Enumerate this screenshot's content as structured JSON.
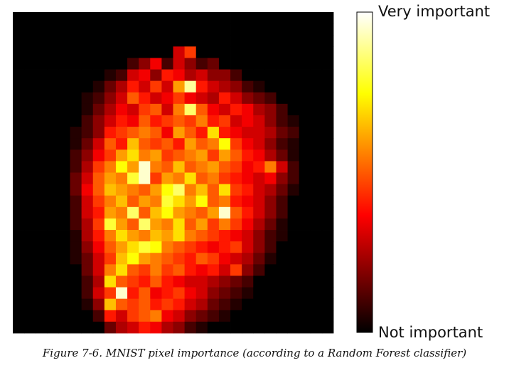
{
  "caption": "Figure 7-6. MNIST pixel importance (according to a Random Forest classifier)",
  "chart_data": {
    "type": "heatmap",
    "grid": [
      28,
      28
    ],
    "colormap": "hot",
    "value_range": [
      0,
      1
    ],
    "colorbar": {
      "high_label": "Very important",
      "low_label": "Not important"
    },
    "values": [
      [
        0,
        0,
        0,
        0,
        0,
        0,
        0,
        0,
        0,
        0,
        0,
        0,
        0,
        0,
        0,
        0,
        0,
        0,
        0,
        0,
        0,
        0,
        0,
        0,
        0,
        0,
        0,
        0
      ],
      [
        0,
        0,
        0,
        0,
        0,
        0,
        0,
        0,
        0,
        0,
        0,
        0,
        0,
        0,
        0,
        0,
        0,
        0,
        0,
        0,
        0,
        0,
        0,
        0,
        0,
        0,
        0,
        0
      ],
      [
        0,
        0,
        0,
        0,
        0,
        0,
        0,
        0,
        0,
        0,
        0,
        0,
        0,
        0,
        0,
        0,
        0,
        0,
        0,
        0,
        0,
        0,
        0,
        0,
        0,
        0,
        0,
        0
      ],
      [
        0,
        0,
        0,
        0,
        0,
        0,
        0,
        0,
        0,
        0,
        0,
        0,
        0,
        0,
        0.3,
        0.45,
        0,
        0,
        0,
        0,
        0,
        0,
        0,
        0,
        0,
        0,
        0,
        0
      ],
      [
        0,
        0,
        0,
        0,
        0,
        0,
        0,
        0,
        0,
        0,
        0.1,
        0.2,
        0.35,
        0.1,
        0.3,
        0.2,
        0.1,
        0.15,
        0,
        0,
        0,
        0,
        0,
        0,
        0,
        0,
        0,
        0
      ],
      [
        0,
        0,
        0,
        0,
        0,
        0,
        0,
        0,
        0.05,
        0.1,
        0.3,
        0.35,
        0.2,
        0.4,
        0.35,
        0.25,
        0.3,
        0.2,
        0.2,
        0.1,
        0,
        0,
        0,
        0,
        0,
        0,
        0,
        0
      ],
      [
        0,
        0,
        0,
        0,
        0,
        0,
        0,
        0.05,
        0.15,
        0.25,
        0.4,
        0.3,
        0.45,
        0.3,
        0.6,
        0.9,
        0.4,
        0.3,
        0.25,
        0.2,
        0.1,
        0.05,
        0,
        0,
        0,
        0,
        0,
        0
      ],
      [
        0,
        0,
        0,
        0,
        0,
        0,
        0.05,
        0.1,
        0.2,
        0.3,
        0.5,
        0.4,
        0.3,
        0.35,
        0.45,
        0.35,
        0.3,
        0.25,
        0.4,
        0.3,
        0.2,
        0.15,
        0.1,
        0,
        0,
        0,
        0,
        0
      ],
      [
        0,
        0,
        0,
        0,
        0,
        0,
        0.05,
        0.15,
        0.25,
        0.35,
        0.3,
        0.45,
        0.5,
        0.3,
        0.55,
        0.85,
        0.5,
        0.35,
        0.3,
        0.4,
        0.35,
        0.25,
        0.2,
        0.1,
        0,
        0,
        0,
        0
      ],
      [
        0,
        0,
        0,
        0,
        0,
        0,
        0.1,
        0.2,
        0.3,
        0.4,
        0.35,
        0.5,
        0.4,
        0.45,
        0.5,
        0.45,
        0.55,
        0.4,
        0.45,
        0.3,
        0.35,
        0.3,
        0.2,
        0.1,
        0.05,
        0,
        0,
        0
      ],
      [
        0,
        0,
        0,
        0,
        0,
        0.05,
        0.1,
        0.2,
        0.4,
        0.45,
        0.5,
        0.55,
        0.5,
        0.35,
        0.6,
        0.5,
        0.4,
        0.7,
        0.4,
        0.35,
        0.3,
        0.3,
        0.25,
        0.15,
        0.1,
        0,
        0,
        0
      ],
      [
        0,
        0,
        0,
        0,
        0,
        0.05,
        0.15,
        0.3,
        0.5,
        0.4,
        0.65,
        0.5,
        0.45,
        0.5,
        0.4,
        0.6,
        0.5,
        0.55,
        0.75,
        0.45,
        0.35,
        0.3,
        0.2,
        0.1,
        0.05,
        0,
        0,
        0
      ],
      [
        0,
        0,
        0,
        0,
        0,
        0.1,
        0.2,
        0.35,
        0.45,
        0.6,
        0.7,
        0.55,
        0.6,
        0.45,
        0.5,
        0.55,
        0.6,
        0.45,
        0.6,
        0.5,
        0.4,
        0.35,
        0.25,
        0.15,
        0.05,
        0,
        0,
        0
      ],
      [
        0,
        0,
        0,
        0,
        0,
        0.1,
        0.25,
        0.45,
        0.55,
        0.75,
        0.6,
        0.95,
        0.55,
        0.5,
        0.65,
        0.5,
        0.55,
        0.6,
        0.5,
        0.45,
        0.35,
        0.4,
        0.55,
        0.3,
        0.1,
        0,
        0,
        0
      ],
      [
        0,
        0,
        0,
        0,
        0,
        0.15,
        0.3,
        0.5,
        0.6,
        0.55,
        0.8,
        0.95,
        0.45,
        0.6,
        0.55,
        0.7,
        0.5,
        0.55,
        0.45,
        0.4,
        0.35,
        0.3,
        0.35,
        0.2,
        0.1,
        0,
        0,
        0
      ],
      [
        0,
        0,
        0,
        0,
        0,
        0.15,
        0.35,
        0.5,
        0.65,
        0.6,
        0.55,
        0.5,
        0.6,
        0.75,
        0.85,
        0.55,
        0.65,
        0.5,
        0.7,
        0.45,
        0.4,
        0.3,
        0.25,
        0.15,
        0.05,
        0,
        0,
        0
      ],
      [
        0,
        0,
        0,
        0,
        0,
        0.1,
        0.3,
        0.45,
        0.55,
        0.65,
        0.5,
        0.6,
        0.55,
        0.8,
        0.7,
        0.6,
        0.75,
        0.5,
        0.55,
        0.4,
        0.35,
        0.3,
        0.2,
        0.1,
        0,
        0,
        0,
        0
      ],
      [
        0,
        0,
        0,
        0,
        0,
        0.1,
        0.3,
        0.4,
        0.6,
        0.55,
        0.85,
        0.5,
        0.65,
        0.75,
        0.6,
        0.55,
        0.5,
        0.6,
        0.95,
        0.5,
        0.4,
        0.3,
        0.2,
        0.1,
        0,
        0,
        0,
        0
      ],
      [
        0,
        0,
        0,
        0,
        0,
        0.1,
        0.25,
        0.45,
        0.8,
        0.6,
        0.5,
        0.85,
        0.6,
        0.55,
        0.7,
        0.5,
        0.6,
        0.45,
        0.55,
        0.45,
        0.35,
        0.25,
        0.15,
        0.05,
        0,
        0,
        0,
        0
      ],
      [
        0,
        0,
        0,
        0,
        0,
        0.05,
        0.25,
        0.4,
        0.55,
        0.7,
        0.6,
        0.55,
        0.65,
        0.6,
        0.7,
        0.55,
        0.5,
        0.45,
        0.4,
        0.35,
        0.3,
        0.2,
        0.1,
        0.05,
        0,
        0,
        0,
        0
      ],
      [
        0,
        0,
        0,
        0,
        0,
        0.05,
        0.2,
        0.35,
        0.5,
        0.6,
        0.7,
        0.8,
        0.75,
        0.55,
        0.5,
        0.45,
        0.4,
        0.35,
        0.4,
        0.45,
        0.3,
        0.2,
        0.1,
        0,
        0,
        0,
        0,
        0
      ],
      [
        0,
        0,
        0,
        0,
        0,
        0.05,
        0.15,
        0.3,
        0.45,
        0.65,
        0.75,
        0.6,
        0.55,
        0.5,
        0.45,
        0.4,
        0.5,
        0.45,
        0.35,
        0.3,
        0.25,
        0.15,
        0.05,
        0,
        0,
        0,
        0,
        0
      ],
      [
        0,
        0,
        0,
        0,
        0,
        0,
        0.15,
        0.3,
        0.55,
        0.7,
        0.5,
        0.45,
        0.55,
        0.45,
        0.5,
        0.4,
        0.35,
        0.4,
        0.3,
        0.45,
        0.2,
        0.1,
        0,
        0,
        0,
        0,
        0,
        0
      ],
      [
        0,
        0,
        0,
        0,
        0,
        0,
        0.1,
        0.25,
        0.7,
        0.5,
        0.45,
        0.4,
        0.5,
        0.4,
        0.35,
        0.3,
        0.3,
        0.25,
        0.2,
        0.15,
        0.1,
        0,
        0,
        0,
        0,
        0,
        0,
        0
      ],
      [
        0,
        0,
        0,
        0,
        0,
        0,
        0.1,
        0.3,
        0.45,
        0.95,
        0.4,
        0.5,
        0.35,
        0.4,
        0.45,
        0.35,
        0.3,
        0.2,
        0.15,
        0.1,
        0.05,
        0,
        0,
        0,
        0,
        0,
        0,
        0
      ],
      [
        0,
        0,
        0,
        0,
        0,
        0,
        0.05,
        0.2,
        0.65,
        0.5,
        0.45,
        0.5,
        0.4,
        0.45,
        0.4,
        0.3,
        0.25,
        0.15,
        0.1,
        0.05,
        0,
        0,
        0,
        0,
        0,
        0,
        0,
        0
      ],
      [
        0,
        0,
        0,
        0,
        0,
        0,
        0,
        0.1,
        0.4,
        0.3,
        0.45,
        0.5,
        0.55,
        0.35,
        0.3,
        0.2,
        0.15,
        0.1,
        0.05,
        0,
        0,
        0,
        0,
        0,
        0,
        0,
        0,
        0
      ],
      [
        0,
        0,
        0,
        0,
        0,
        0,
        0,
        0,
        0.15,
        0.25,
        0.3,
        0.4,
        0.35,
        0.25,
        0.2,
        0.1,
        0.05,
        0,
        0,
        0,
        0,
        0,
        0,
        0,
        0,
        0,
        0,
        0
      ]
    ]
  }
}
